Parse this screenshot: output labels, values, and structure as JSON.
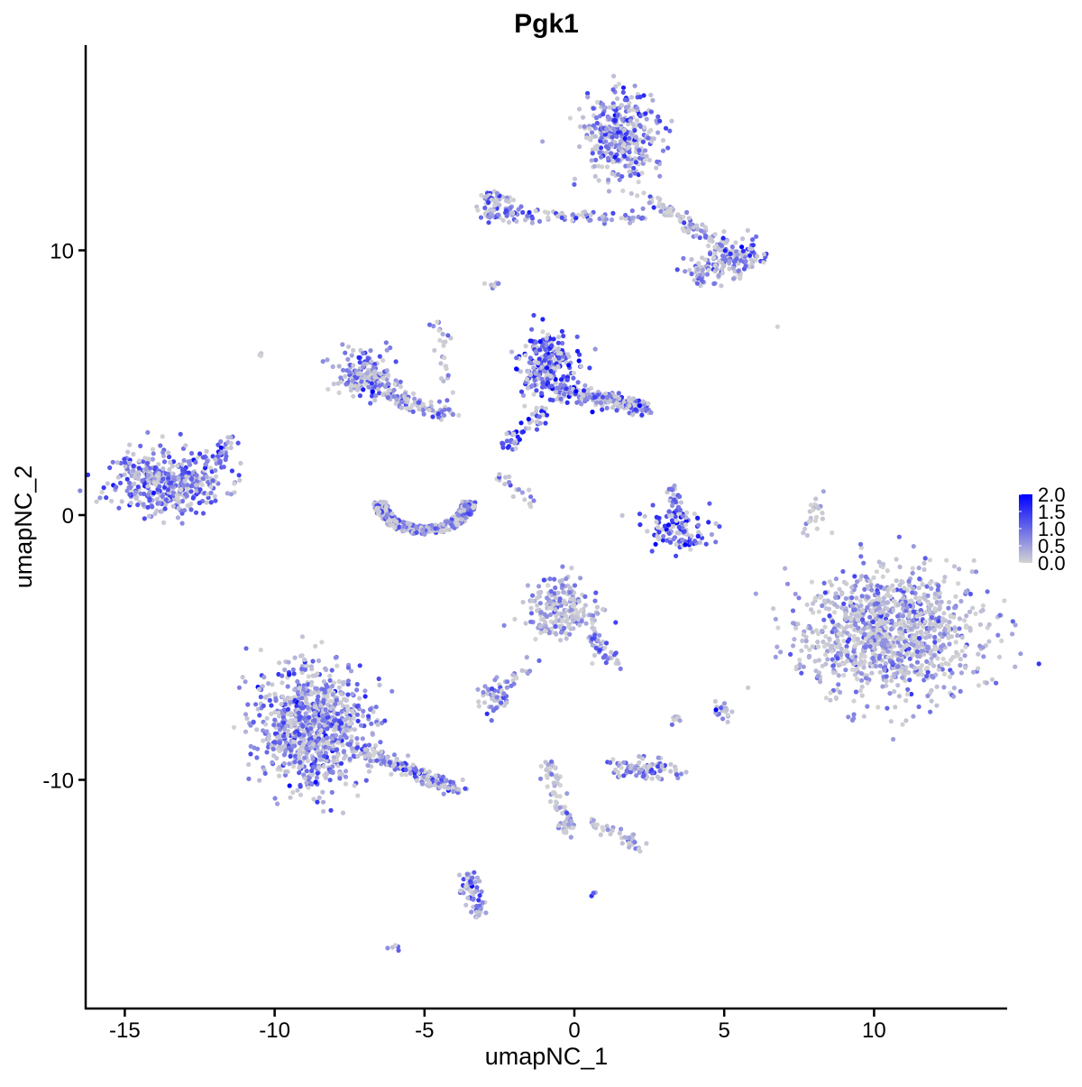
{
  "chart_data": {
    "type": "scatter",
    "title": "Pgk1",
    "xlabel": "umapNC_1",
    "ylabel": "umapNC_2",
    "xlim": [
      -16.3,
      14.4
    ],
    "ylim": [
      -18.6,
      17.7
    ],
    "xticks": [
      -15,
      -10,
      -5,
      0,
      5,
      10
    ],
    "yticks": [
      -10,
      0,
      10
    ],
    "xtick_labels": [
      "-15",
      "-10",
      "-5",
      "0",
      "5",
      "10"
    ],
    "ytick_labels": [
      "-10",
      "0",
      "10"
    ],
    "grid": false,
    "color_scale": {
      "low": "#D3D3D3",
      "high": "#0000FF",
      "min": 0,
      "max": 2.0,
      "ticks": [
        "2.0",
        "1.5",
        "1.0",
        "0.5",
        "0.0"
      ],
      "placement": "right"
    },
    "clusters": [
      {
        "x": -13.45,
        "y": 1.2,
        "sx": 0.9,
        "sy": 0.6,
        "n": 450,
        "expr": 0.9
      },
      {
        "x": -12.0,
        "y": 1.8,
        "x2": -11.4,
        "y2": 2.8,
        "n": 25,
        "expr": 0.9
      },
      {
        "x": 1.6,
        "y": 14.3,
        "sx": 0.6,
        "sy": 0.8,
        "n": 380,
        "expr": 0.8
      },
      {
        "x": 2.5,
        "y": 12.0,
        "x2": 5.5,
        "y2": 9.6,
        "n": 120,
        "expr": 0.7
      },
      {
        "x": 5.4,
        "y": 9.7,
        "sx": 0.5,
        "sy": 0.4,
        "n": 100,
        "expr": 0.9
      },
      {
        "x": 4.3,
        "y": 9.2,
        "sx": 0.3,
        "sy": 0.3,
        "n": 40,
        "expr": 0.6
      },
      {
        "x": -3.2,
        "y": 11.4,
        "x2": 2.3,
        "y2": 11.2,
        "n": 110,
        "expr": 0.7
      },
      {
        "x": -2.6,
        "y": 11.8,
        "sx": 0.3,
        "sy": 0.3,
        "n": 50,
        "expr": 0.7
      },
      {
        "x": -7.0,
        "y": 5.3,
        "sx": 0.5,
        "sy": 0.5,
        "n": 170,
        "expr": 0.8
      },
      {
        "x": -6.5,
        "y": 4.7,
        "x2": -4.2,
        "y2": 3.7,
        "n": 90,
        "expr": 0.8
      },
      {
        "x": -4.5,
        "y": 7.4,
        "x2": -4.1,
        "y2": 4.0,
        "n": 30,
        "expr": 0.6
      },
      {
        "x": -5.0,
        "y": 0.5,
        "ring": 1.4,
        "n": 420,
        "expr": 0.8
      },
      {
        "x": -0.9,
        "y": 5.6,
        "sx": 0.5,
        "sy": 0.7,
        "n": 260,
        "expr": 1.2
      },
      {
        "x": -0.5,
        "y": 4.8,
        "x2": 2.5,
        "y2": 4.0,
        "n": 220,
        "expr": 0.9
      },
      {
        "x": -1.0,
        "y": 4.0,
        "x2": -2.3,
        "y2": 2.5,
        "n": 50,
        "expr": 1.4
      },
      {
        "x": -2.8,
        "y": 1.5,
        "x2": -1.3,
        "y2": 0.6,
        "n": 20,
        "expr": 0.6
      },
      {
        "x": 3.4,
        "y": -0.6,
        "sx": 0.6,
        "sy": 0.35,
        "n": 110,
        "expr": 1.2
      },
      {
        "x": 3.2,
        "y": 1.0,
        "x2": 3.5,
        "y2": 0.0,
        "n": 35,
        "expr": 1.0
      },
      {
        "x": 10.5,
        "y": -4.4,
        "sx": 1.5,
        "sy": 1.2,
        "n": 1100,
        "expr": 0.5
      },
      {
        "x": -8.7,
        "y": -8.0,
        "sx": 0.9,
        "sy": 1.1,
        "n": 850,
        "expr": 0.8
      },
      {
        "x": -7.2,
        "y": -8.8,
        "x2": -3.8,
        "y2": -10.4,
        "n": 170,
        "expr": 0.8
      },
      {
        "x": -0.4,
        "y": -3.6,
        "sx": 0.6,
        "sy": 0.6,
        "n": 220,
        "expr": 0.5
      },
      {
        "x": 0.6,
        "y": -4.5,
        "x2": 1.2,
        "y2": -5.5,
        "n": 40,
        "expr": 0.6
      },
      {
        "x": 2.4,
        "y": -9.6,
        "sx": 0.5,
        "sy": 0.2,
        "n": 90,
        "expr": 0.7
      },
      {
        "x": -2.6,
        "y": -6.9,
        "sx": 0.3,
        "sy": 0.3,
        "n": 45,
        "expr": 0.7
      },
      {
        "x": -1.6,
        "y": -5.8,
        "x2": -2.4,
        "y2": -6.6,
        "n": 15,
        "expr": 0.8
      },
      {
        "x": -0.9,
        "y": -9.4,
        "x2": -0.2,
        "y2": -12.0,
        "n": 80,
        "expr": 0.3
      },
      {
        "x": 0.5,
        "y": -11.6,
        "x2": 2.4,
        "y2": -12.6,
        "n": 40,
        "expr": 0.3
      },
      {
        "x": -3.6,
        "y": -13.5,
        "x2": -3.2,
        "y2": -15.2,
        "n": 60,
        "expr": 0.8
      },
      {
        "x": 7.8,
        "y": -0.6,
        "x2": 8.2,
        "y2": 0.9,
        "n": 22,
        "expr": 0.1
      },
      {
        "x": 4.9,
        "y": -7.4,
        "sx": 0.2,
        "sy": 0.2,
        "n": 18,
        "expr": 0.7
      },
      {
        "x": 3.4,
        "y": -7.7,
        "sx": 0.1,
        "sy": 0.1,
        "n": 8,
        "expr": 0.4
      },
      {
        "x": -2.7,
        "y": 8.7,
        "sx": 0.15,
        "sy": 0.1,
        "n": 8,
        "expr": 0.7
      },
      {
        "x": -10.5,
        "y": 6.1,
        "sx": 0.05,
        "sy": 0.05,
        "n": 3,
        "expr": 0.8
      },
      {
        "x": -6.0,
        "y": -16.3,
        "sx": 0.1,
        "sy": 0.05,
        "n": 5,
        "expr": 0.8
      },
      {
        "x": 0.6,
        "y": -14.3,
        "sx": 0.05,
        "sy": 0.05,
        "n": 3,
        "expr": 0.8
      },
      {
        "x": 6.8,
        "y": 7.1,
        "sx": 0.02,
        "sy": 0.02,
        "n": 1,
        "expr": 0.0
      }
    ]
  }
}
